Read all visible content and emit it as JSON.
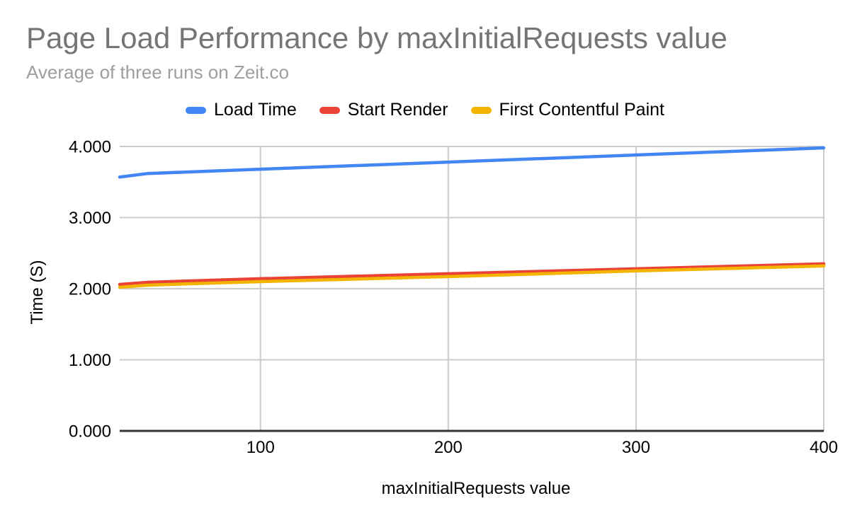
{
  "header": {
    "title": "Page Load Performance by maxInitialRequests value",
    "subtitle": "Average of three runs on Zeit.co"
  },
  "legend": {
    "items": [
      {
        "label": "Load Time",
        "color": "#4285F4"
      },
      {
        "label": "Start Render",
        "color": "#EA4335"
      },
      {
        "label": "First Contentful Paint",
        "color": "#F3B400"
      }
    ]
  },
  "axes": {
    "x": {
      "title": "maxInitialRequests value",
      "tick_labels": [
        "100",
        "200",
        "300",
        "400"
      ]
    },
    "y": {
      "title": "Time (S)",
      "tick_labels": [
        "0.000",
        "1.000",
        "2.000",
        "3.000",
        "4.000"
      ]
    }
  },
  "colors": {
    "title_text": "#757575",
    "subtitle_text": "#9E9E9E",
    "axis_text": "#000000",
    "gridline": "#CCCCCC",
    "axis_line": "#333333",
    "background": "#FFFFFF"
  },
  "chart_data": {
    "type": "line",
    "title": "Page Load Performance by maxInitialRequests value",
    "subtitle": "Average of three runs on Zeit.co",
    "xlabel": "maxInitialRequests value",
    "ylabel": "Time (S)",
    "xlim": [
      25,
      400
    ],
    "ylim": [
      0,
      4
    ],
    "x_ticks": [
      100,
      200,
      300,
      400
    ],
    "x_tick_labels": [
      "100",
      "200",
      "300",
      "400"
    ],
    "y_ticks": [
      0,
      1,
      2,
      3,
      4
    ],
    "y_tick_labels": [
      "0.000",
      "1.000",
      "2.000",
      "3.000",
      "4.000"
    ],
    "grid": true,
    "legend_position": "top",
    "x": [
      25,
      40,
      100,
      200,
      300,
      400
    ],
    "series": [
      {
        "name": "Load Time",
        "color": "#4285F4",
        "values": [
          3.57,
          3.62,
          3.68,
          3.78,
          3.88,
          3.98
        ]
      },
      {
        "name": "Start Render",
        "color": "#EA4335",
        "values": [
          2.06,
          2.09,
          2.14,
          2.21,
          2.28,
          2.35
        ]
      },
      {
        "name": "First Contentful Paint",
        "color": "#F3B400",
        "values": [
          2.02,
          2.05,
          2.1,
          2.17,
          2.25,
          2.32
        ]
      }
    ]
  }
}
